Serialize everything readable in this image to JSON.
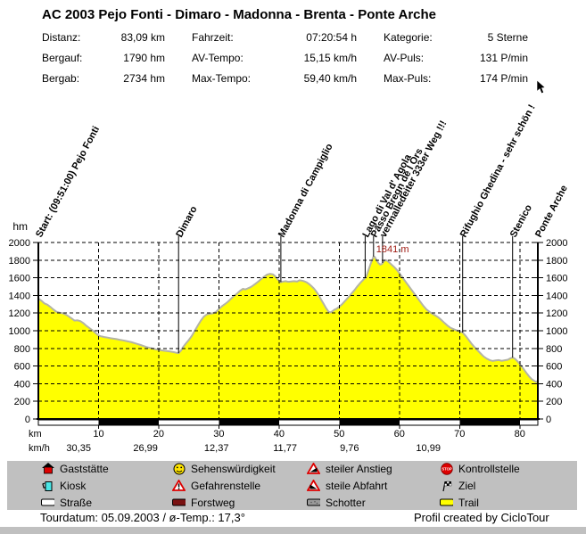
{
  "title": "AC 2003 Pejo Fonti - Dimaro - Madonna - Brenta - Ponte Arche",
  "stats": {
    "items": [
      {
        "label": "Distanz:",
        "value": "83,09 km"
      },
      {
        "label": "Fahrzeit:",
        "value": "07:20:54 h"
      },
      {
        "label": "Kategorie:",
        "value": "5 Sterne"
      },
      {
        "label": "Bergauf:",
        "value": "1790 hm"
      },
      {
        "label": "AV-Tempo:",
        "value": "15,15 km/h"
      },
      {
        "label": "AV-Puls:",
        "value": "131 P/min"
      },
      {
        "label": "Bergab:",
        "value": "2734 hm"
      },
      {
        "label": "Max-Tempo:",
        "value": "59,40 km/h"
      },
      {
        "label": "Max-Puls:",
        "value": "174 P/min"
      }
    ]
  },
  "legend": {
    "items": [
      {
        "label": "Gaststätte",
        "icon": "house-icon"
      },
      {
        "label": "Kiosk",
        "icon": "mug-icon"
      },
      {
        "label": "Straße",
        "icon": "road-swatch",
        "swatch": "#ffffff"
      },
      {
        "label": "Sehenswürdigkeit",
        "icon": "smiley-icon"
      },
      {
        "label": "Gefahrenstelle",
        "icon": "warning-triangle-icon"
      },
      {
        "label": "Forstweg",
        "icon": "forest-road-swatch",
        "swatch": "#7a1212"
      },
      {
        "label": "steiler Anstieg",
        "icon": "steep-ascent-icon"
      },
      {
        "label": "steile Abfahrt",
        "icon": "steep-descent-icon"
      },
      {
        "label": "Schotter",
        "icon": "gravel-swatch",
        "swatch": "#9a9a9a"
      },
      {
        "label": "Kontrollstelle",
        "icon": "stop-icon"
      },
      {
        "label": "Ziel",
        "icon": "finish-flag-icon"
      },
      {
        "label": "Trail",
        "icon": "trail-swatch",
        "swatch": "#ffff00"
      }
    ]
  },
  "footer": {
    "left": "Tourdatum: 05.09.2003  /  ø-Temp.: 17,3°",
    "right": "Profil created by CicloTour"
  },
  "chart_data": {
    "type": "area",
    "title": "AC 2003 Pejo Fonti - Dimaro - Madonna - Brenta - Ponte Arche",
    "xlabel": "km",
    "ylabel": "hm",
    "speed_row_label": "km/h",
    "xlim": [
      0,
      83
    ],
    "ylim": [
      0,
      2000
    ],
    "x_ticks": [
      10,
      20,
      30,
      40,
      50,
      60,
      70,
      80
    ],
    "y_ticks": [
      0,
      200,
      400,
      600,
      800,
      1000,
      1200,
      1400,
      1600,
      1800,
      2000
    ],
    "grid": true,
    "fill_color": "#ffff00",
    "line_color": "#b4b4a6",
    "peak_annotation": {
      "text": "1841 m",
      "km": 55.7,
      "color": "#9e1a12"
    },
    "waypoints": [
      {
        "km": 0,
        "label": "Start: (09:51:00) Pejo Fonti",
        "line": false
      },
      {
        "km": 23.3,
        "label": "Dimaro",
        "line": true
      },
      {
        "km": 40.3,
        "label": "Madonna di Campiglio",
        "line": true
      },
      {
        "km": 54.3,
        "label": "Lago di Val d' Agola",
        "line": true
      },
      {
        "km": 55.7,
        "label": "Passo Bregn de l Ors",
        "line": true
      },
      {
        "km": 57.2,
        "label": "vermalledeiter 333er Weg !!!",
        "line": true
      },
      {
        "km": 70.5,
        "label": "Rifughio Ghedina - sehr schön !",
        "line": true
      },
      {
        "km": 78.8,
        "label": "Stenico",
        "line": true
      },
      {
        "km": 83,
        "label": "Ponte Arche",
        "line": false
      }
    ],
    "segment_speeds": [
      {
        "center_km": 6.7,
        "text": "30,35"
      },
      {
        "center_km": 17.8,
        "text": "26,99"
      },
      {
        "center_km": 29.6,
        "text": "12,37"
      },
      {
        "center_km": 41.0,
        "text": "11,77"
      },
      {
        "center_km": 51.7,
        "text": "9,76"
      },
      {
        "center_km": 64.8,
        "text": "10,99"
      }
    ],
    "surface_ruler": {
      "interval_km": 10,
      "colors": [
        "#ffffff",
        "#000000"
      ]
    },
    "profile": [
      [
        0,
        1365
      ],
      [
        0.5,
        1340
      ],
      [
        1,
        1310
      ],
      [
        1.5,
        1295
      ],
      [
        2,
        1270
      ],
      [
        2.5,
        1240
      ],
      [
        3,
        1215
      ],
      [
        3.5,
        1205
      ],
      [
        4,
        1200
      ],
      [
        4.5,
        1185
      ],
      [
        5,
        1165
      ],
      [
        5.5,
        1140
      ],
      [
        6,
        1115
      ],
      [
        6.5,
        1118
      ],
      [
        7,
        1108
      ],
      [
        7.5,
        1085
      ],
      [
        8,
        1055
      ],
      [
        8.5,
        1030
      ],
      [
        9,
        1005
      ],
      [
        9.5,
        975
      ],
      [
        10,
        945
      ],
      [
        10.5,
        935
      ],
      [
        11,
        928
      ],
      [
        11.5,
        922
      ],
      [
        12,
        915
      ],
      [
        12.5,
        910
      ],
      [
        13,
        905
      ],
      [
        13.5,
        898
      ],
      [
        14,
        892
      ],
      [
        14.5,
        885
      ],
      [
        15,
        878
      ],
      [
        15.5,
        870
      ],
      [
        16,
        860
      ],
      [
        16.5,
        850
      ],
      [
        17,
        838
      ],
      [
        17.5,
        826
      ],
      [
        18,
        815
      ],
      [
        18.5,
        806
      ],
      [
        19,
        798
      ],
      [
        19.5,
        790
      ],
      [
        20,
        784
      ],
      [
        20.5,
        778
      ],
      [
        21,
        773
      ],
      [
        21.5,
        769
      ],
      [
        22,
        764
      ],
      [
        22.5,
        758
      ],
      [
        23,
        750
      ],
      [
        23.3,
        746
      ],
      [
        23.7,
        775
      ],
      [
        24,
        810
      ],
      [
        24.5,
        855
      ],
      [
        25,
        895
      ],
      [
        25.5,
        940
      ],
      [
        26,
        1000
      ],
      [
        26.5,
        1060
      ],
      [
        27,
        1115
      ],
      [
        27.5,
        1160
      ],
      [
        28,
        1185
      ],
      [
        28.5,
        1193
      ],
      [
        29,
        1198
      ],
      [
        29.5,
        1212
      ],
      [
        30,
        1245
      ],
      [
        30.5,
        1278
      ],
      [
        31,
        1302
      ],
      [
        31.5,
        1328
      ],
      [
        32,
        1362
      ],
      [
        32.5,
        1395
      ],
      [
        33,
        1420
      ],
      [
        33.5,
        1452
      ],
      [
        34,
        1475
      ],
      [
        34.4,
        1468
      ],
      [
        34.8,
        1480
      ],
      [
        35.2,
        1492
      ],
      [
        35.6,
        1508
      ],
      [
        36,
        1528
      ],
      [
        36.5,
        1555
      ],
      [
        37,
        1585
      ],
      [
        37.5,
        1612
      ],
      [
        38,
        1635
      ],
      [
        38.5,
        1645
      ],
      [
        39,
        1638
      ],
      [
        39.4,
        1615
      ],
      [
        39.8,
        1580
      ],
      [
        40.3,
        1552
      ],
      [
        40.7,
        1558
      ],
      [
        41.1,
        1562
      ],
      [
        41.5,
        1555
      ],
      [
        42,
        1558
      ],
      [
        42.5,
        1562
      ],
      [
        43,
        1558
      ],
      [
        43.4,
        1572
      ],
      [
        43.8,
        1568
      ],
      [
        44.2,
        1560
      ],
      [
        44.6,
        1548
      ],
      [
        45,
        1528
      ],
      [
        45.4,
        1505
      ],
      [
        45.8,
        1478
      ],
      [
        46.2,
        1442
      ],
      [
        46.6,
        1402
      ],
      [
        47,
        1352
      ],
      [
        47.4,
        1305
      ],
      [
        47.8,
        1258
      ],
      [
        48.2,
        1218
      ],
      [
        48.5,
        1208
      ],
      [
        48.8,
        1218
      ],
      [
        49.2,
        1238
      ],
      [
        49.6,
        1252
      ],
      [
        50,
        1272
      ],
      [
        50.5,
        1302
      ],
      [
        51,
        1340
      ],
      [
        51.5,
        1378
      ],
      [
        52,
        1418
      ],
      [
        52.5,
        1458
      ],
      [
        53,
        1502
      ],
      [
        53.5,
        1542
      ],
      [
        54,
        1578
      ],
      [
        54.3,
        1598
      ],
      [
        54.6,
        1635
      ],
      [
        54.9,
        1695
      ],
      [
        55.2,
        1755
      ],
      [
        55.5,
        1808
      ],
      [
        55.7,
        1841
      ],
      [
        55.9,
        1835
      ],
      [
        56.2,
        1800
      ],
      [
        56.5,
        1768
      ],
      [
        56.8,
        1750
      ],
      [
        57.1,
        1758
      ],
      [
        57.4,
        1788
      ],
      [
        57.7,
        1800
      ],
      [
        58,
        1792
      ],
      [
        58.4,
        1768
      ],
      [
        58.8,
        1742
      ],
      [
        59.2,
        1718
      ],
      [
        59.6,
        1688
      ],
      [
        60,
        1652
      ],
      [
        60.5,
        1605
      ],
      [
        61,
        1558
      ],
      [
        61.5,
        1512
      ],
      [
        62,
        1465
      ],
      [
        62.5,
        1418
      ],
      [
        63,
        1372
      ],
      [
        63.5,
        1326
      ],
      [
        64,
        1280
      ],
      [
        64.5,
        1240
      ],
      [
        65,
        1214
      ],
      [
        65.5,
        1192
      ],
      [
        66,
        1172
      ],
      [
        66.5,
        1150
      ],
      [
        67,
        1120
      ],
      [
        67.5,
        1088
      ],
      [
        68,
        1058
      ],
      [
        68.5,
        1032
      ],
      [
        69,
        1018
      ],
      [
        69.5,
        1004
      ],
      [
        70,
        994
      ],
      [
        70.5,
        980
      ],
      [
        71,
        942
      ],
      [
        71.5,
        898
      ],
      [
        72,
        852
      ],
      [
        72.5,
        812
      ],
      [
        73,
        778
      ],
      [
        73.5,
        742
      ],
      [
        74,
        708
      ],
      [
        74.5,
        684
      ],
      [
        75,
        668
      ],
      [
        75.5,
        658
      ],
      [
        76,
        664
      ],
      [
        76.5,
        668
      ],
      [
        77,
        660
      ],
      [
        77.5,
        666
      ],
      [
        78,
        672
      ],
      [
        78.4,
        686
      ],
      [
        78.8,
        696
      ],
      [
        79.2,
        682
      ],
      [
        79.6,
        655
      ],
      [
        80,
        622
      ],
      [
        80.4,
        588
      ],
      [
        80.8,
        550
      ],
      [
        81.2,
        512
      ],
      [
        81.6,
        478
      ],
      [
        82,
        450
      ],
      [
        82.4,
        432
      ],
      [
        82.7,
        420
      ],
      [
        83,
        434
      ]
    ]
  }
}
